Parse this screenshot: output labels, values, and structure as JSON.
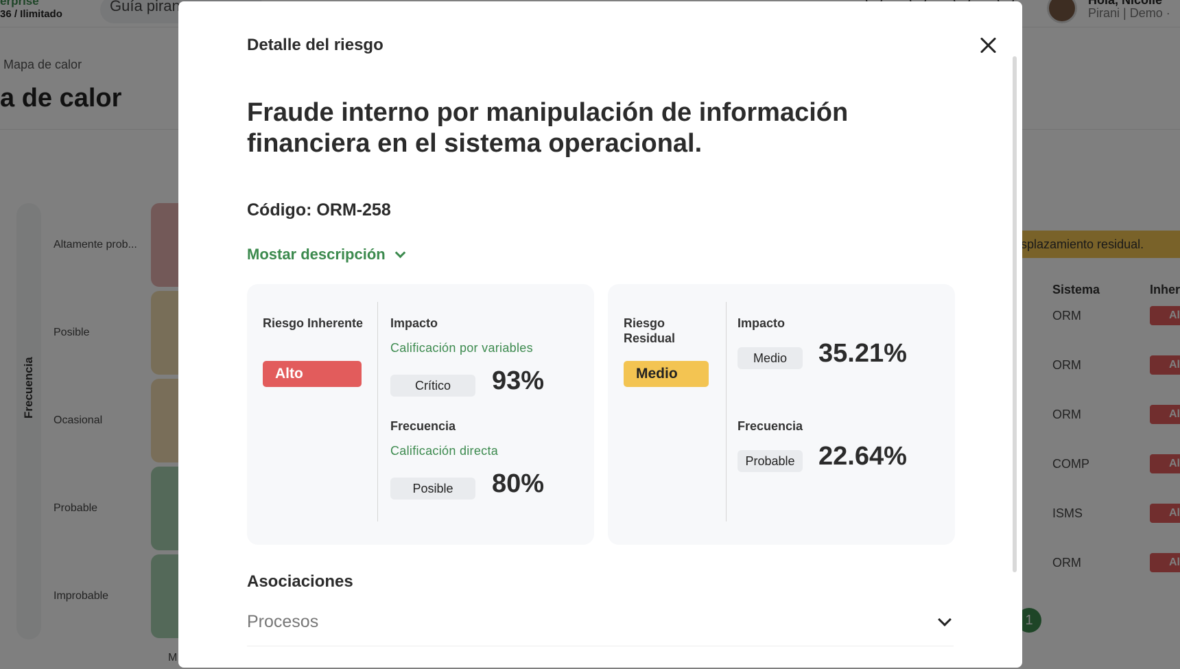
{
  "background": {
    "plan": "erprise",
    "plan_sub": "36 / Ilimitado",
    "guide_text": "Guía piran",
    "user_greeting": "Hola, Nicolle",
    "user_sub": "Pirani | Demo ·",
    "breadcrumb": "Mapa de calor",
    "page_title": "a de calor",
    "frequency_axis": "Frecuencia",
    "frequency_rows": [
      "Altamente prob...",
      "Posible",
      "Ocasional",
      "Probable",
      "Improbable"
    ],
    "banner": "splazamiento residual.",
    "table_headers": {
      "system": "Sistema",
      "inherent": "Inher"
    },
    "systems": [
      "ORM",
      "ORM",
      "ORM",
      "COMP",
      "ISMS",
      "ORM"
    ],
    "inherent_badge": "Al",
    "page_number": "1",
    "bottom_label": "M",
    "colors": {
      "green": "#3c8a4e",
      "red": "#e25c5c",
      "yellow": "#f3c452"
    }
  },
  "modal": {
    "header": "Detalle del riesgo",
    "title": "Fraude interno por manipulación de información financiera en el sistema operacional.",
    "code_label": "Código:",
    "code_value": "ORM-258",
    "show_description": "Mostar descripción",
    "inherent": {
      "label": "Riesgo Inherente",
      "level": "Alto",
      "impact_label": "Impacto",
      "impact_method": "Calificación por variables",
      "impact_rating": "Crítico",
      "impact_pct": "93%",
      "frequency_label": "Frecuencia",
      "frequency_method": "Calificación directa",
      "frequency_rating": "Posible",
      "frequency_pct": "80%"
    },
    "residual": {
      "label": "Riesgo Residual",
      "level": "Medio",
      "impact_label": "Impacto",
      "impact_rating": "Medio",
      "impact_pct": "35.21%",
      "frequency_label": "Frecuencia",
      "frequency_rating": "Probable",
      "frequency_pct": "22.64%"
    },
    "associations_title": "Asociaciones",
    "processes_label": "Procesos"
  }
}
